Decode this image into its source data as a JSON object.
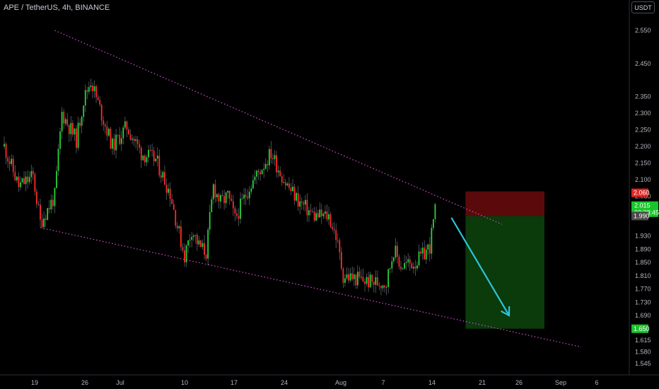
{
  "header": {
    "symbol": "APE / TetherUS, 4h, BINANCE",
    "currency": "USDT"
  },
  "colors": {
    "background": "#000000",
    "up": "#26d43a",
    "down": "#ff2a2a",
    "channel": "#d64fd6",
    "arrow": "#2bc4d8",
    "stop_zone": "#5a0a0a",
    "target_zone": "#0b3a0b"
  },
  "chart_data": {
    "type": "candlestick",
    "x_ticks": [
      "19",
      "26",
      "Jul",
      "10",
      "17",
      "24",
      "Aug",
      "7",
      "14",
      "21",
      "26",
      "Sep",
      "6"
    ],
    "y_ticks": [
      "2.550",
      "2.450",
      "2.350",
      "2.300",
      "2.250",
      "2.200",
      "2.150",
      "2.100",
      "2.050",
      "1.930",
      "1.890",
      "1.850",
      "1.810",
      "1.770",
      "1.730",
      "1.690",
      "1.615",
      "1.580",
      "1.545"
    ],
    "ylim": [
      1.53,
      2.57
    ],
    "price_tags": [
      {
        "value": "2.060",
        "type": "stop",
        "color": "#e02424"
      },
      {
        "value": "2.015",
        "countdown": "03:38:45",
        "type": "current",
        "color": "#19c42a"
      },
      {
        "value": "1.990",
        "type": "entry",
        "color": "#4a4a4a"
      },
      {
        "value": "1.650",
        "type": "target",
        "color": "#19c42a"
      }
    ],
    "trade": {
      "entry": 1.99,
      "stop": 2.06,
      "target": 1.65
    },
    "series_path": [
      {
        "date": "Jun 14",
        "price": 2.2
      },
      {
        "date": "Jun 16",
        "price": 2.08
      },
      {
        "date": "Jun 18",
        "price": 2.11
      },
      {
        "date": "Jun 19",
        "price": 1.97
      },
      {
        "date": "Jun 21",
        "price": 2.05
      },
      {
        "date": "Jun 22",
        "price": 2.3
      },
      {
        "date": "Jun 24",
        "price": 2.22
      },
      {
        "date": "Jun 25",
        "price": 2.34
      },
      {
        "date": "Jun 26",
        "price": 2.4
      },
      {
        "date": "Jun 27",
        "price": 2.33
      },
      {
        "date": "Jun 29",
        "price": 2.2
      },
      {
        "date": "Jul 1",
        "price": 2.26
      },
      {
        "date": "Jul 3",
        "price": 2.18
      },
      {
        "date": "Jul 5",
        "price": 2.16
      },
      {
        "date": "Jul 7",
        "price": 2.06
      },
      {
        "date": "Jul 8",
        "price": 1.96
      },
      {
        "date": "Jul 9",
        "price": 1.87
      },
      {
        "date": "Jul 10",
        "price": 1.95
      },
      {
        "date": "Jul 11",
        "price": 1.9
      },
      {
        "date": "Jul 12",
        "price": 1.88
      },
      {
        "date": "Jul 13",
        "price": 2.08
      },
      {
        "date": "Jul 14",
        "price": 2.03
      },
      {
        "date": "Jul 15",
        "price": 2.05
      },
      {
        "date": "Jul 16",
        "price": 1.98
      },
      {
        "date": "Jul 18",
        "price": 2.08
      },
      {
        "date": "Jul 21",
        "price": 2.18
      },
      {
        "date": "Jul 23",
        "price": 2.09
      },
      {
        "date": "Jul 25",
        "price": 2.03
      },
      {
        "date": "Jul 27",
        "price": 1.99
      },
      {
        "date": "Jul 29",
        "price": 1.99
      },
      {
        "date": "Jul 30",
        "price": 1.93
      },
      {
        "date": "Jul 31",
        "price": 1.81
      },
      {
        "date": "Aug 2",
        "price": 1.8
      },
      {
        "date": "Aug 4",
        "price": 1.79
      },
      {
        "date": "Aug 6",
        "price": 1.79
      },
      {
        "date": "Aug 7",
        "price": 1.89
      },
      {
        "date": "Aug 8",
        "price": 1.84
      },
      {
        "date": "Aug 10",
        "price": 1.85
      },
      {
        "date": "Aug 11",
        "price": 1.87
      },
      {
        "date": "Aug 12",
        "price": 1.9
      },
      {
        "date": "Aug 13",
        "price": 2.04
      },
      {
        "date": "Aug 13",
        "price": 2.015
      }
    ],
    "channel": {
      "upper": [
        {
          "date": "Jun 21",
          "price": 2.55
        },
        {
          "date": "Aug 22",
          "price": 1.965
        }
      ],
      "lower": [
        {
          "date": "Jun 19",
          "price": 1.955
        },
        {
          "date": "Sep 2",
          "price": 1.595
        }
      ]
    },
    "arrow": {
      "from": {
        "date": "Aug 15",
        "price": 1.985
      },
      "to": {
        "date": "Aug 23",
        "price": 1.69
      }
    }
  }
}
